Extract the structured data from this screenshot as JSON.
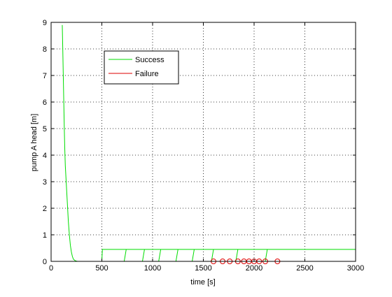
{
  "chart_data": {
    "type": "line",
    "xlabel": "time [s]",
    "ylabel": "pump A head [m]",
    "xlim": [
      0,
      3000
    ],
    "ylim": [
      0,
      9
    ],
    "xticks": [
      0,
      500,
      1000,
      1500,
      2000,
      2500,
      3000
    ],
    "yticks": [
      0,
      1,
      2,
      3,
      4,
      5,
      6,
      7,
      8,
      9
    ],
    "grid": true,
    "legend_position": "top-left",
    "colors": {
      "success": "#00dd00",
      "failure": "#dd0000"
    },
    "series": [
      {
        "name": "Success",
        "color": "#00dd00",
        "segments": [
          [
            [
              110,
              8.9
            ],
            [
              115,
              8.0
            ],
            [
              120,
              7.0
            ],
            [
              125,
              6.0
            ],
            [
              130,
              5.0
            ],
            [
              135,
              4.2
            ],
            [
              140,
              3.6
            ],
            [
              150,
              2.9
            ],
            [
              160,
              2.2
            ],
            [
              170,
              1.5
            ],
            [
              180,
              1.0
            ],
            [
              190,
              0.6
            ],
            [
              200,
              0.35
            ],
            [
              210,
              0.18
            ],
            [
              220,
              0.08
            ],
            [
              240,
              0.02
            ],
            [
              260,
              0.0
            ],
            [
              500,
              0.0
            ]
          ],
          [
            [
              500,
              0.0
            ],
            [
              505,
              0.45
            ],
            [
              3000,
              0.45
            ]
          ],
          [
            [
              720,
              0.0
            ],
            [
              740,
              0.45
            ]
          ],
          [
            [
              900,
              0.0
            ],
            [
              920,
              0.45
            ]
          ],
          [
            [
              1060,
              0.0
            ],
            [
              1080,
              0.45
            ]
          ],
          [
            [
              1230,
              0.0
            ],
            [
              1250,
              0.45
            ]
          ],
          [
            [
              1390,
              0.0
            ],
            [
              1410,
              0.45
            ]
          ],
          [
            [
              1580,
              0.0
            ],
            [
              1600,
              0.45
            ]
          ],
          [
            [
              1820,
              0.0
            ],
            [
              1840,
              0.45
            ]
          ],
          [
            [
              2110,
              0.0
            ],
            [
              2130,
              0.45
            ]
          ]
        ]
      },
      {
        "name": "Failure",
        "color": "#dd0000",
        "line": [
          [
            1500,
            0.0
          ],
          [
            2250,
            0.0
          ]
        ],
        "markers": [
          1600,
          1690,
          1760,
          1840,
          1900,
          1950,
          2000,
          2050,
          2110,
          2230
        ]
      }
    ]
  }
}
